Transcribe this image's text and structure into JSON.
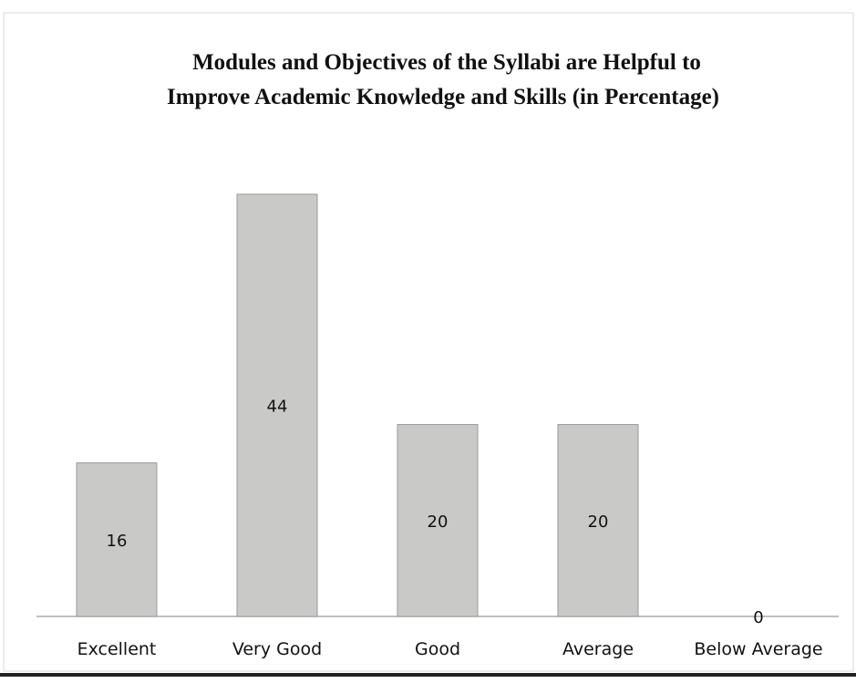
{
  "chart_data": {
    "type": "bar",
    "title": [
      "Modules and Objectives of the Syllabi are Helpful to",
      "Improve Academic Knowledge and Skills (in Percentage)"
    ],
    "categories": [
      "Excellent",
      "Very Good",
      "Good",
      "Average",
      "Below Average"
    ],
    "values": [
      16,
      44,
      20,
      20,
      0
    ],
    "color": "#c9c9c7"
  }
}
